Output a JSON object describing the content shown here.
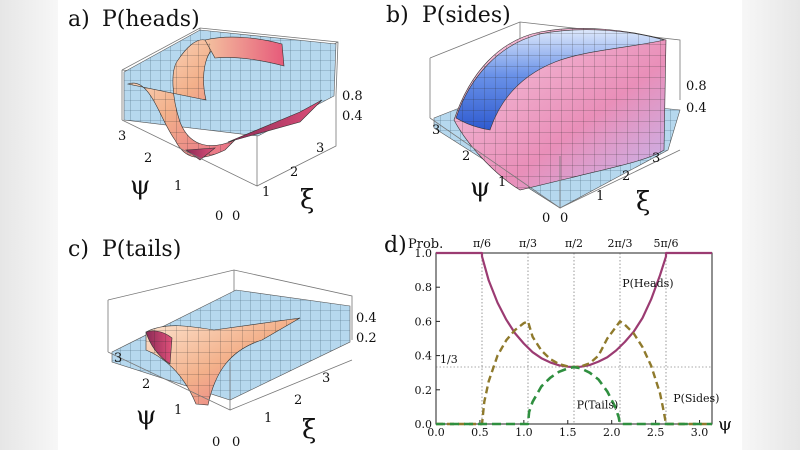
{
  "panels": {
    "a": {
      "label": "a)",
      "title": "P(heads)",
      "z_ticks": [
        "0.8",
        "0.4"
      ],
      "psi_ticks": [
        "3",
        "2",
        "1",
        "0"
      ],
      "xi_ticks": [
        "0",
        "1",
        "2",
        "3"
      ],
      "psi_name": "ψ",
      "xi_name": "ξ"
    },
    "b": {
      "label": "b)",
      "title": "P(sides)",
      "z_ticks": [
        "0.8",
        "0.4"
      ],
      "psi_ticks": [
        "3",
        "2",
        "1",
        "0"
      ],
      "xi_ticks": [
        "0",
        "1",
        "2",
        "3"
      ],
      "psi_name": "ψ",
      "xi_name": "ξ"
    },
    "c": {
      "label": "c)",
      "title": "P(tails)",
      "z_ticks": [
        "0.4",
        "0.2"
      ],
      "psi_ticks": [
        "3",
        "2",
        "1",
        "0"
      ],
      "xi_ticks": [
        "0",
        "1",
        "2",
        "3"
      ],
      "psi_name": "ψ",
      "xi_name": "ξ"
    }
  },
  "colors": {
    "heads": "#9b3b72",
    "sides": "#8f7a2c",
    "tails": "#2f8f3f",
    "surface_light": "#b6d8ee",
    "surface_warm": "#f3b08a",
    "surface_pink": "#e76a86",
    "surface_blue": "#4c78e0",
    "mesh": "#333333"
  },
  "chart_data": {
    "type": "line",
    "panel_label": "d)",
    "ylabel": "Prob.",
    "xlabel": "ψ",
    "xlim": [
      0.0,
      3.14159
    ],
    "ylim": [
      0.0,
      1.0
    ],
    "x_ticks": [
      "0.0",
      "0.5",
      "1.0",
      "1.5",
      "2.0",
      "2.5",
      "3.0"
    ],
    "y_ticks": [
      "0.0",
      "0.2",
      "0.4",
      "0.6",
      "0.8",
      "1.0"
    ],
    "top_ticks": [
      "π/6",
      "π/3",
      "π/2",
      "2π/3",
      "5π/6"
    ],
    "top_tick_values": [
      0.5236,
      1.0472,
      1.5708,
      2.0944,
      2.618
    ],
    "reference_line": {
      "label": "1/3",
      "value": 0.3333
    },
    "series": [
      {
        "name": "P(Heads)",
        "style": "solid",
        "x": [
          0.0,
          0.5236,
          0.5236,
          0.6,
          0.7,
          0.8,
          0.9,
          1.0,
          1.1,
          1.2,
          1.3,
          1.4,
          1.5,
          1.5708,
          1.65,
          1.75,
          1.85,
          1.95,
          2.05,
          2.15,
          2.25,
          2.35,
          2.45,
          2.55,
          2.618,
          2.618,
          3.1416
        ],
        "y": [
          1.0,
          1.0,
          0.98,
          0.84,
          0.71,
          0.61,
          0.53,
          0.47,
          0.42,
          0.385,
          0.36,
          0.343,
          0.335,
          0.333,
          0.335,
          0.345,
          0.365,
          0.39,
          0.43,
          0.48,
          0.54,
          0.62,
          0.73,
          0.87,
          0.98,
          1.0,
          1.0
        ]
      },
      {
        "name": "P(Sides)",
        "style": "dashed",
        "x": [
          0.0,
          0.5236,
          0.55,
          0.6,
          0.7,
          0.8,
          0.9,
          1.0,
          1.0472,
          1.1,
          1.2,
          1.3,
          1.4,
          1.5,
          1.5708,
          1.65,
          1.75,
          1.85,
          1.95,
          2.0944,
          2.15,
          2.25,
          2.35,
          2.45,
          2.55,
          2.59,
          2.618,
          3.1416
        ],
        "y": [
          0.0,
          0.0,
          0.13,
          0.25,
          0.4,
          0.49,
          0.55,
          0.59,
          0.6,
          0.51,
          0.43,
          0.38,
          0.35,
          0.337,
          0.333,
          0.337,
          0.355,
          0.4,
          0.5,
          0.6,
          0.58,
          0.53,
          0.45,
          0.34,
          0.18,
          0.08,
          0.0,
          0.0
        ]
      },
      {
        "name": "P(Tails)",
        "style": "dashed",
        "x": [
          0.0,
          1.0472,
          1.06,
          1.1,
          1.2,
          1.3,
          1.4,
          1.5,
          1.5708,
          1.65,
          1.75,
          1.85,
          1.95,
          2.04,
          2.08,
          2.0944,
          3.1416
        ],
        "y": [
          0.0,
          0.0,
          0.07,
          0.13,
          0.22,
          0.27,
          0.305,
          0.325,
          0.333,
          0.325,
          0.3,
          0.26,
          0.19,
          0.1,
          0.04,
          0.0,
          0.0
        ]
      }
    ],
    "annotations": [
      "P(Heads)",
      "P(Sides)",
      "P(Tails)"
    ]
  }
}
